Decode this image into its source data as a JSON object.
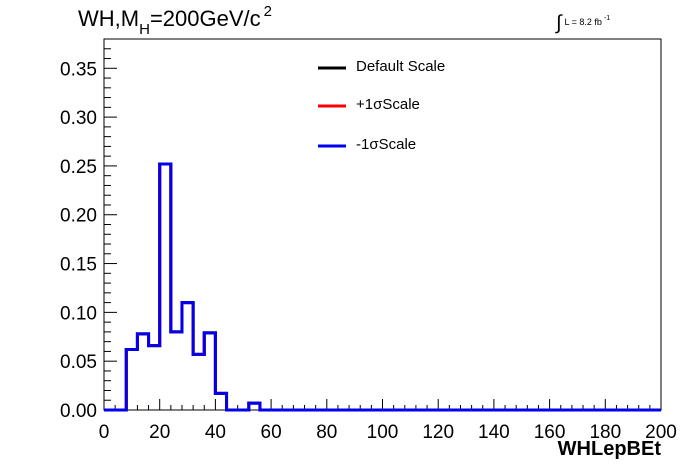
{
  "title": {
    "main": "WH,M",
    "sub": "H",
    "rest": "=200GeV/c",
    "sup": "2"
  },
  "lumi": {
    "symbol": "∫",
    "text": "L = 8.2 fb",
    "sup": "-1"
  },
  "chart_data": {
    "type": "line",
    "style": "step-histogram",
    "xlabel": "WHLepBEt",
    "ylabel": "",
    "xlim": [
      0,
      200
    ],
    "ylim": [
      0,
      0.38
    ],
    "xticks": [
      "0",
      "20",
      "40",
      "60",
      "80",
      "100",
      "120",
      "140",
      "160",
      "180",
      "200"
    ],
    "yticks": [
      "0.00",
      "0.05",
      "0.10",
      "0.15",
      "0.20",
      "0.25",
      "0.30",
      "0.35"
    ],
    "grid": false,
    "legend_position": "top-center",
    "bin_edges": [
      0,
      4,
      8,
      12,
      16,
      20,
      24,
      28,
      32,
      36,
      40,
      44,
      48,
      52,
      56,
      60,
      64,
      68,
      72,
      76,
      80,
      84,
      88,
      92,
      96,
      100,
      104,
      108,
      112,
      116,
      120,
      124,
      128,
      132,
      136,
      140,
      144,
      148,
      152,
      156,
      160,
      164,
      168,
      172,
      176,
      180,
      184,
      188,
      192,
      196,
      200
    ],
    "series": [
      {
        "name": "Default Scale",
        "color": "#000000",
        "values": [
          0,
          0,
          0.062,
          0.078,
          0.066,
          0.252,
          0.08,
          0.11,
          0.057,
          0.079,
          0.017,
          0,
          0,
          0.007,
          0,
          0,
          0,
          0,
          0,
          0,
          0,
          0,
          0,
          0,
          0,
          0,
          0,
          0,
          0,
          0,
          0,
          0,
          0,
          0,
          0,
          0,
          0,
          0,
          0,
          0,
          0,
          0,
          0,
          0,
          0,
          0,
          0,
          0,
          0,
          0
        ]
      },
      {
        "name": "+1σScale",
        "color": "#ff0000",
        "values": [
          0,
          0,
          0.062,
          0.078,
          0.066,
          0.252,
          0.08,
          0.11,
          0.057,
          0.079,
          0.017,
          0,
          0,
          0.007,
          0,
          0,
          0,
          0,
          0,
          0,
          0,
          0,
          0,
          0,
          0,
          0,
          0,
          0,
          0,
          0,
          0,
          0,
          0,
          0,
          0,
          0,
          0,
          0,
          0,
          0,
          0,
          0,
          0,
          0,
          0,
          0,
          0,
          0,
          0,
          0
        ]
      },
      {
        "name": "-1σScale",
        "color": "#0000ee",
        "values": [
          0,
          0,
          0.062,
          0.078,
          0.066,
          0.252,
          0.08,
          0.11,
          0.057,
          0.079,
          0.017,
          0,
          0,
          0.007,
          0,
          0,
          0,
          0,
          0,
          0,
          0,
          0,
          0,
          0,
          0,
          0,
          0,
          0,
          0,
          0,
          0,
          0,
          0,
          0,
          0,
          0,
          0,
          0,
          0,
          0,
          0,
          0,
          0,
          0,
          0,
          0,
          0,
          0,
          0,
          0
        ]
      }
    ]
  }
}
